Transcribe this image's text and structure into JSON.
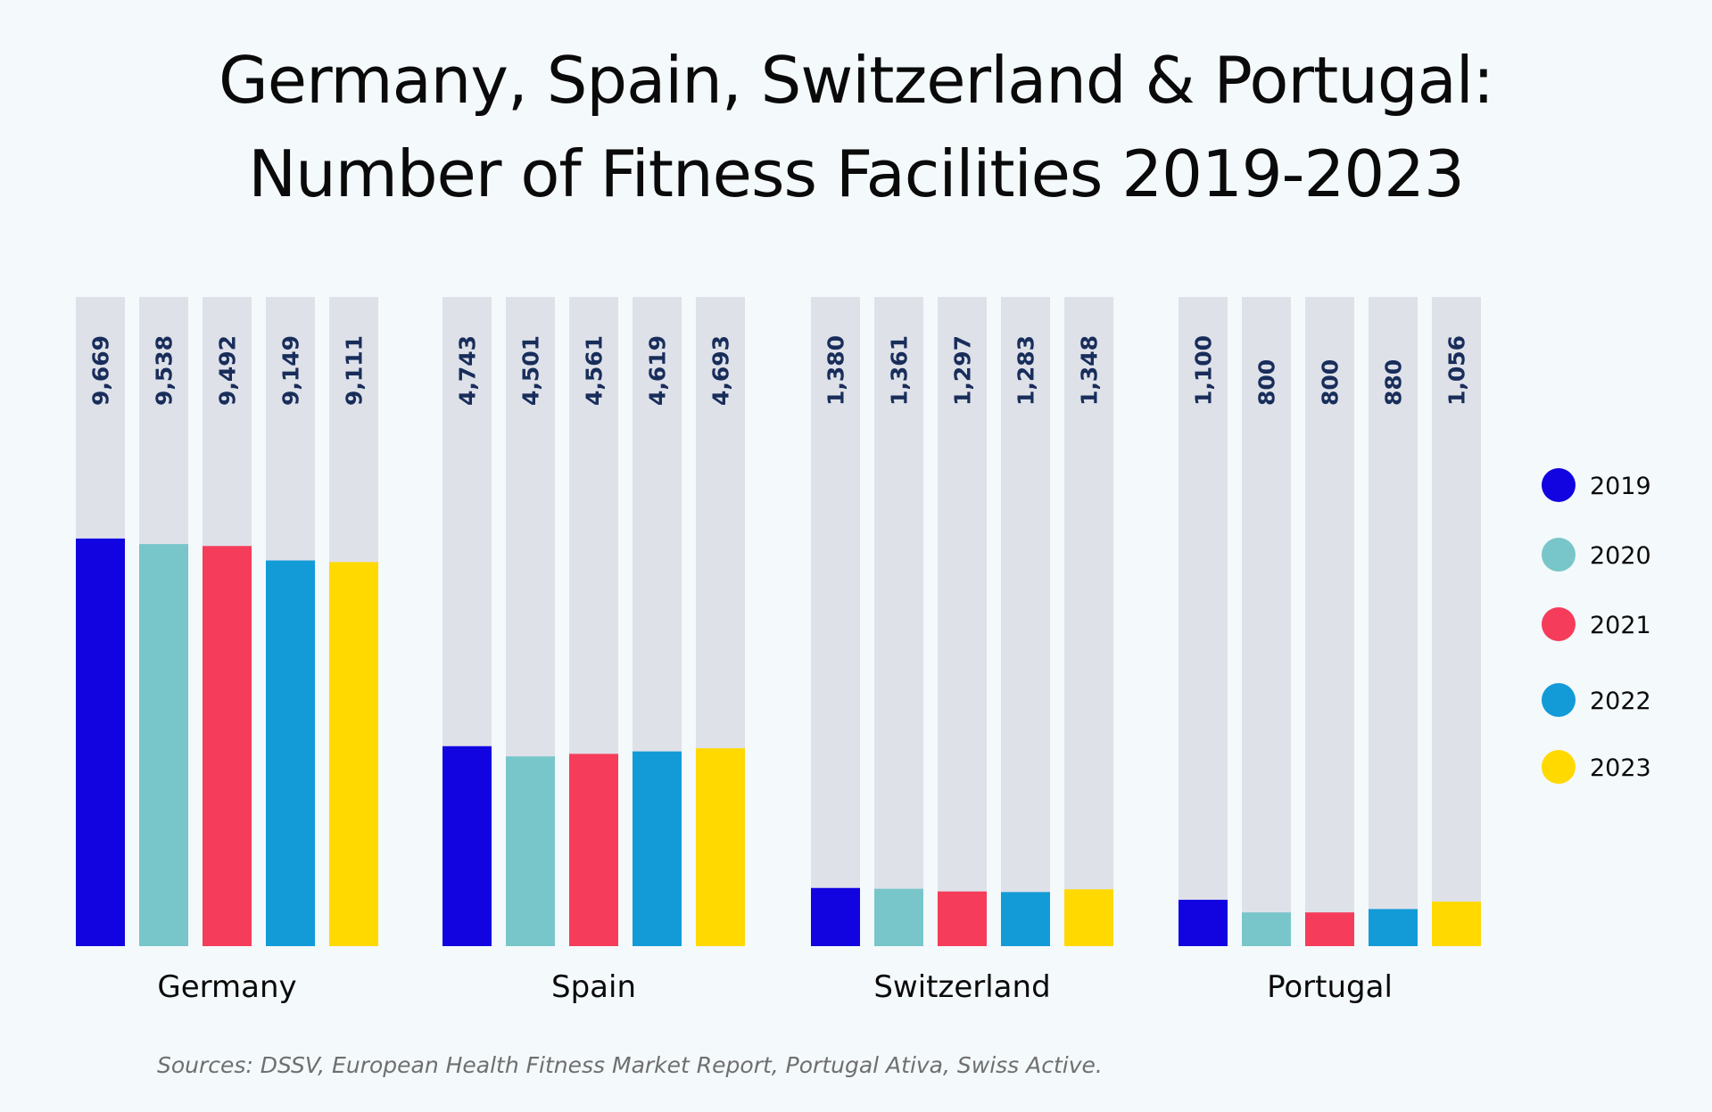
{
  "chart_data": {
    "type": "bar",
    "title": "Germany, Spain, Switzerland & Portugal:",
    "subtitle": "Number of Fitness Facilities 2019-2023",
    "xlabel": "",
    "ylabel": "",
    "ylim": [
      0,
      15400
    ],
    "grid": false,
    "legend_position": "right",
    "categories": [
      "Germany",
      "Spain",
      "Switzerland",
      "Portugal"
    ],
    "series": [
      {
        "name": "2019",
        "color": "#1104e0",
        "values": [
          9669,
          4743,
          1380,
          1100
        ],
        "labels": [
          "9,669",
          "4,743",
          "1,380",
          "1,100"
        ]
      },
      {
        "name": "2020",
        "color": "#78c6c9",
        "values": [
          9538,
          4501,
          1361,
          800
        ],
        "labels": [
          "9,538",
          "4,501",
          "1,361",
          "800"
        ]
      },
      {
        "name": "2021",
        "color": "#f53c5a",
        "values": [
          9492,
          4561,
          1297,
          800
        ],
        "labels": [
          "9,492",
          "4,561",
          "1,297",
          "800"
        ]
      },
      {
        "name": "2022",
        "color": "#139bd7",
        "values": [
          9149,
          4619,
          1283,
          880
        ],
        "labels": [
          "9,149",
          "4,619",
          "1,283",
          "880"
        ]
      },
      {
        "name": "2023",
        "color": "#ffd900",
        "values": [
          9111,
          4693,
          1348,
          1056
        ],
        "labels": [
          "9,111",
          "4,693",
          "1,348",
          "1,056"
        ]
      }
    ],
    "track_color": "#dfe1e9",
    "source": "Sources: DSSV, European Health Fitness Market Report, Portugal Ativa, Swiss Active."
  }
}
